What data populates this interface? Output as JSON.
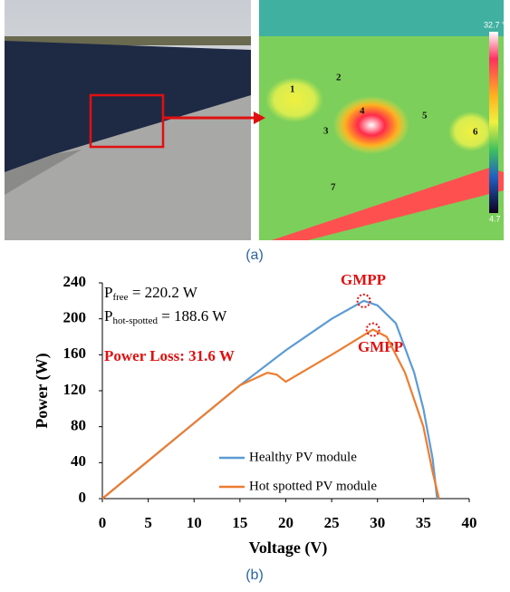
{
  "figure_a": {
    "caption": "(a)",
    "scale_max": "32.7 °C",
    "scale_min": "4.7",
    "hotspot_labels": [
      "1",
      "2",
      "3",
      "4",
      "5",
      "6",
      "7"
    ]
  },
  "chart_data": {
    "type": "line",
    "caption": "(b)",
    "x_label": "Voltage (V)",
    "y_label": "Power (W)",
    "xlim": [
      0,
      40
    ],
    "xticks": [
      0,
      5,
      10,
      15,
      20,
      25,
      30,
      35,
      40
    ],
    "ylim": [
      0,
      240
    ],
    "yticks": [
      0,
      40,
      80,
      120,
      160,
      200,
      240
    ],
    "series": [
      {
        "name": "Healthy PV module",
        "color": "#5b9bd5",
        "x": [
          0,
          5,
          10,
          15,
          20,
          25,
          28.5,
          30,
          32,
          34,
          35,
          36,
          36.5
        ],
        "values": [
          0,
          42,
          84,
          126,
          165,
          200,
          220,
          215,
          195,
          140,
          100,
          45,
          0
        ]
      },
      {
        "name": "Hot spotted PV module",
        "color": "#ed7d31",
        "x": [
          0,
          5,
          10,
          15,
          18,
          19,
          20,
          25,
          29.5,
          31,
          33,
          35,
          36,
          36.7
        ],
        "values": [
          0,
          42,
          84,
          126,
          140,
          138,
          130,
          160,
          188,
          180,
          140,
          80,
          30,
          0
        ]
      }
    ],
    "annotations": {
      "p_free": {
        "symbol": "P",
        "subscript": "free",
        "text": " = 220.2 W"
      },
      "p_hot": {
        "symbol": "P",
        "subscript": "hot-spotted",
        "text": " = 188.6 W"
      },
      "power_loss": "Power Loss: 31.6 W",
      "gmpp_healthy": "GMPP",
      "gmpp_hot": "GMPP"
    }
  }
}
